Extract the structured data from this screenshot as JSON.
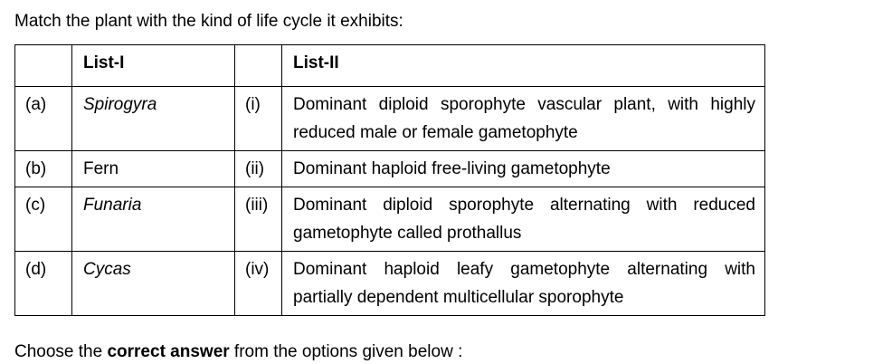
{
  "question": "Match the plant with the kind of life cycle it exhibits:",
  "table": {
    "headers": [
      "",
      "List-I",
      "",
      "List-II"
    ],
    "rows": [
      {
        "left_index": "(a)",
        "left_text": "Spirogyra",
        "left_italic": true,
        "right_index": "(i)",
        "right_text": "Dominant diploid sporophyte vascular plant, with highly reduced male or female gametophyte"
      },
      {
        "left_index": "(b)",
        "left_text": "Fern",
        "left_italic": false,
        "right_index": "(ii)",
        "right_text": "Dominant haploid free-living gametophyte"
      },
      {
        "left_index": "(c)",
        "left_text": "Funaria",
        "left_italic": true,
        "right_index": "(iii)",
        "right_text": "Dominant diploid sporophyte alternating with reduced gametophyte called prothallus"
      },
      {
        "left_index": "(d)",
        "left_text": "Cycas",
        "left_italic": true,
        "right_index": "(iv)",
        "right_text": "Dominant haploid leafy gametophyte alternating with partially dependent multicellular sporophyte"
      }
    ]
  },
  "footer": {
    "before": "Choose the ",
    "bold": "correct answer",
    "after": " from the options given below :"
  }
}
